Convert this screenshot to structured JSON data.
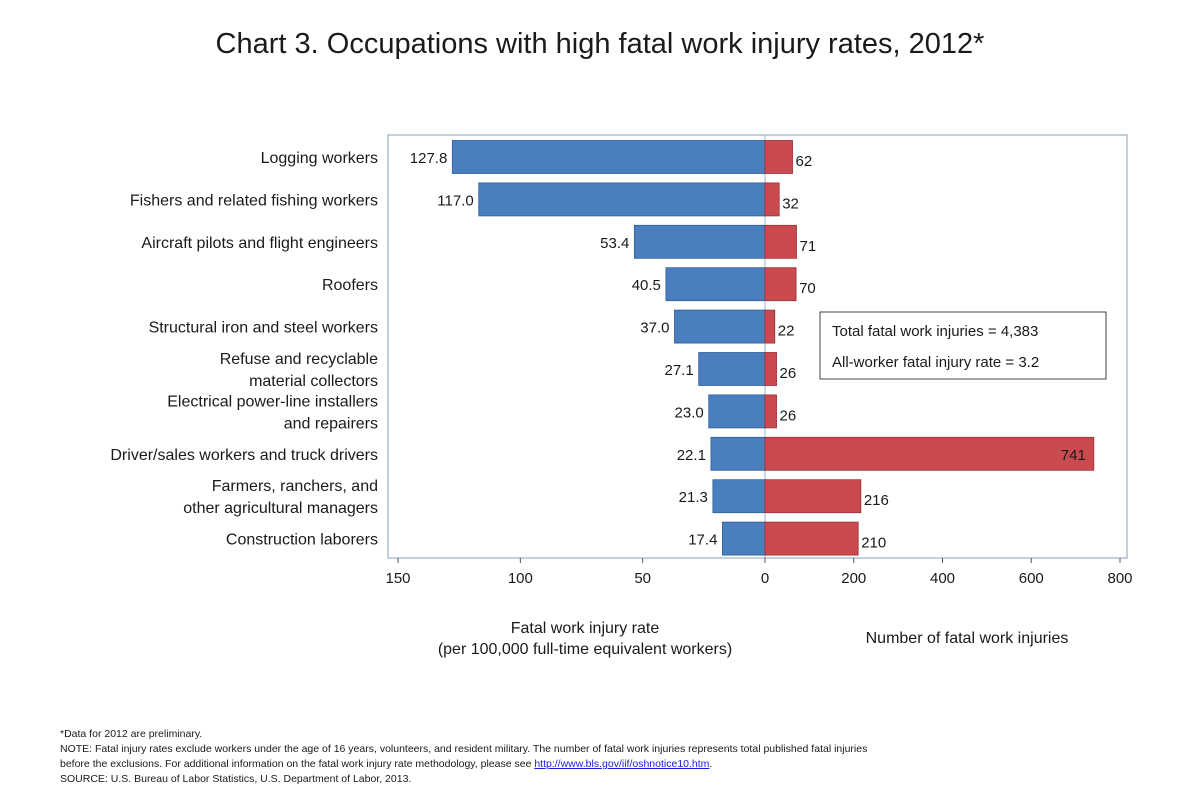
{
  "title": "Chart 3. Occupations with high fatal work injury rates, 2012*",
  "chart_data": {
    "type": "bar",
    "categories": [
      [
        "Logging workers"
      ],
      [
        "Fishers and related fishing workers"
      ],
      [
        "Aircraft pilots and flight engineers"
      ],
      [
        "Roofers"
      ],
      [
        "Structural iron and steel workers"
      ],
      [
        "Refuse and recyclable",
        "material collectors"
      ],
      [
        "Electrical power-line installers",
        "and repairers"
      ],
      [
        "Driver/sales workers and truck drivers"
      ],
      [
        "Farmers, ranchers, and",
        "other agricultural managers"
      ],
      [
        "Construction laborers"
      ]
    ],
    "series": [
      {
        "values": [
          127.8,
          117.0,
          53.4,
          40.5,
          37.0,
          27.1,
          23.0,
          22.1,
          21.3,
          17.4
        ],
        "labels": [
          "127.8",
          "117.0",
          "53.4",
          "40.5",
          "37.0",
          "27.1",
          "23.0",
          "22.1",
          "21.3",
          "17.4"
        ],
        "color": "#4a7ebf",
        "axis": {
          "title": [
            "Fatal work injury rate",
            "(per 100,000 full-time equivalent workers)"
          ],
          "ticks": [
            150,
            100,
            50,
            0
          ],
          "range": [
            150,
            0
          ],
          "reversed": true
        }
      },
      {
        "values": [
          62,
          32,
          71,
          70,
          22,
          26,
          26,
          741,
          216,
          210
        ],
        "labels": [
          "62",
          "32",
          "71",
          "70",
          "22",
          "26",
          "26",
          "741",
          "216",
          "210"
        ],
        "color": "#c94b50",
        "axis": {
          "title": [
            "Number of fatal work injuries"
          ],
          "ticks": [
            0,
            200,
            400,
            600,
            800
          ],
          "range": [
            0,
            800
          ]
        }
      }
    ],
    "legend_box": [
      "Total fatal work injuries = 4,383",
      "All-worker fatal injury rate = 3.2"
    ],
    "frame_color": "#9ab0cc"
  },
  "footnotes": {
    "line1": "*Data for 2012 are preliminary.",
    "line2": "NOTE: Fatal injury rates exclude workers under the age of 16 years, volunteers, and resident military. The number of fatal work injuries represents total published fatal injuries",
    "line3_text": "before the exclusions. For additional information on the fatal work injury rate methodology, please see ",
    "line3_link": "http://www.bls.gov/iif/oshnotice10.htm",
    "line3_end": ".",
    "line4": "SOURCE: U.S. Bureau of Labor Statistics, U.S. Department of Labor, 2013."
  }
}
